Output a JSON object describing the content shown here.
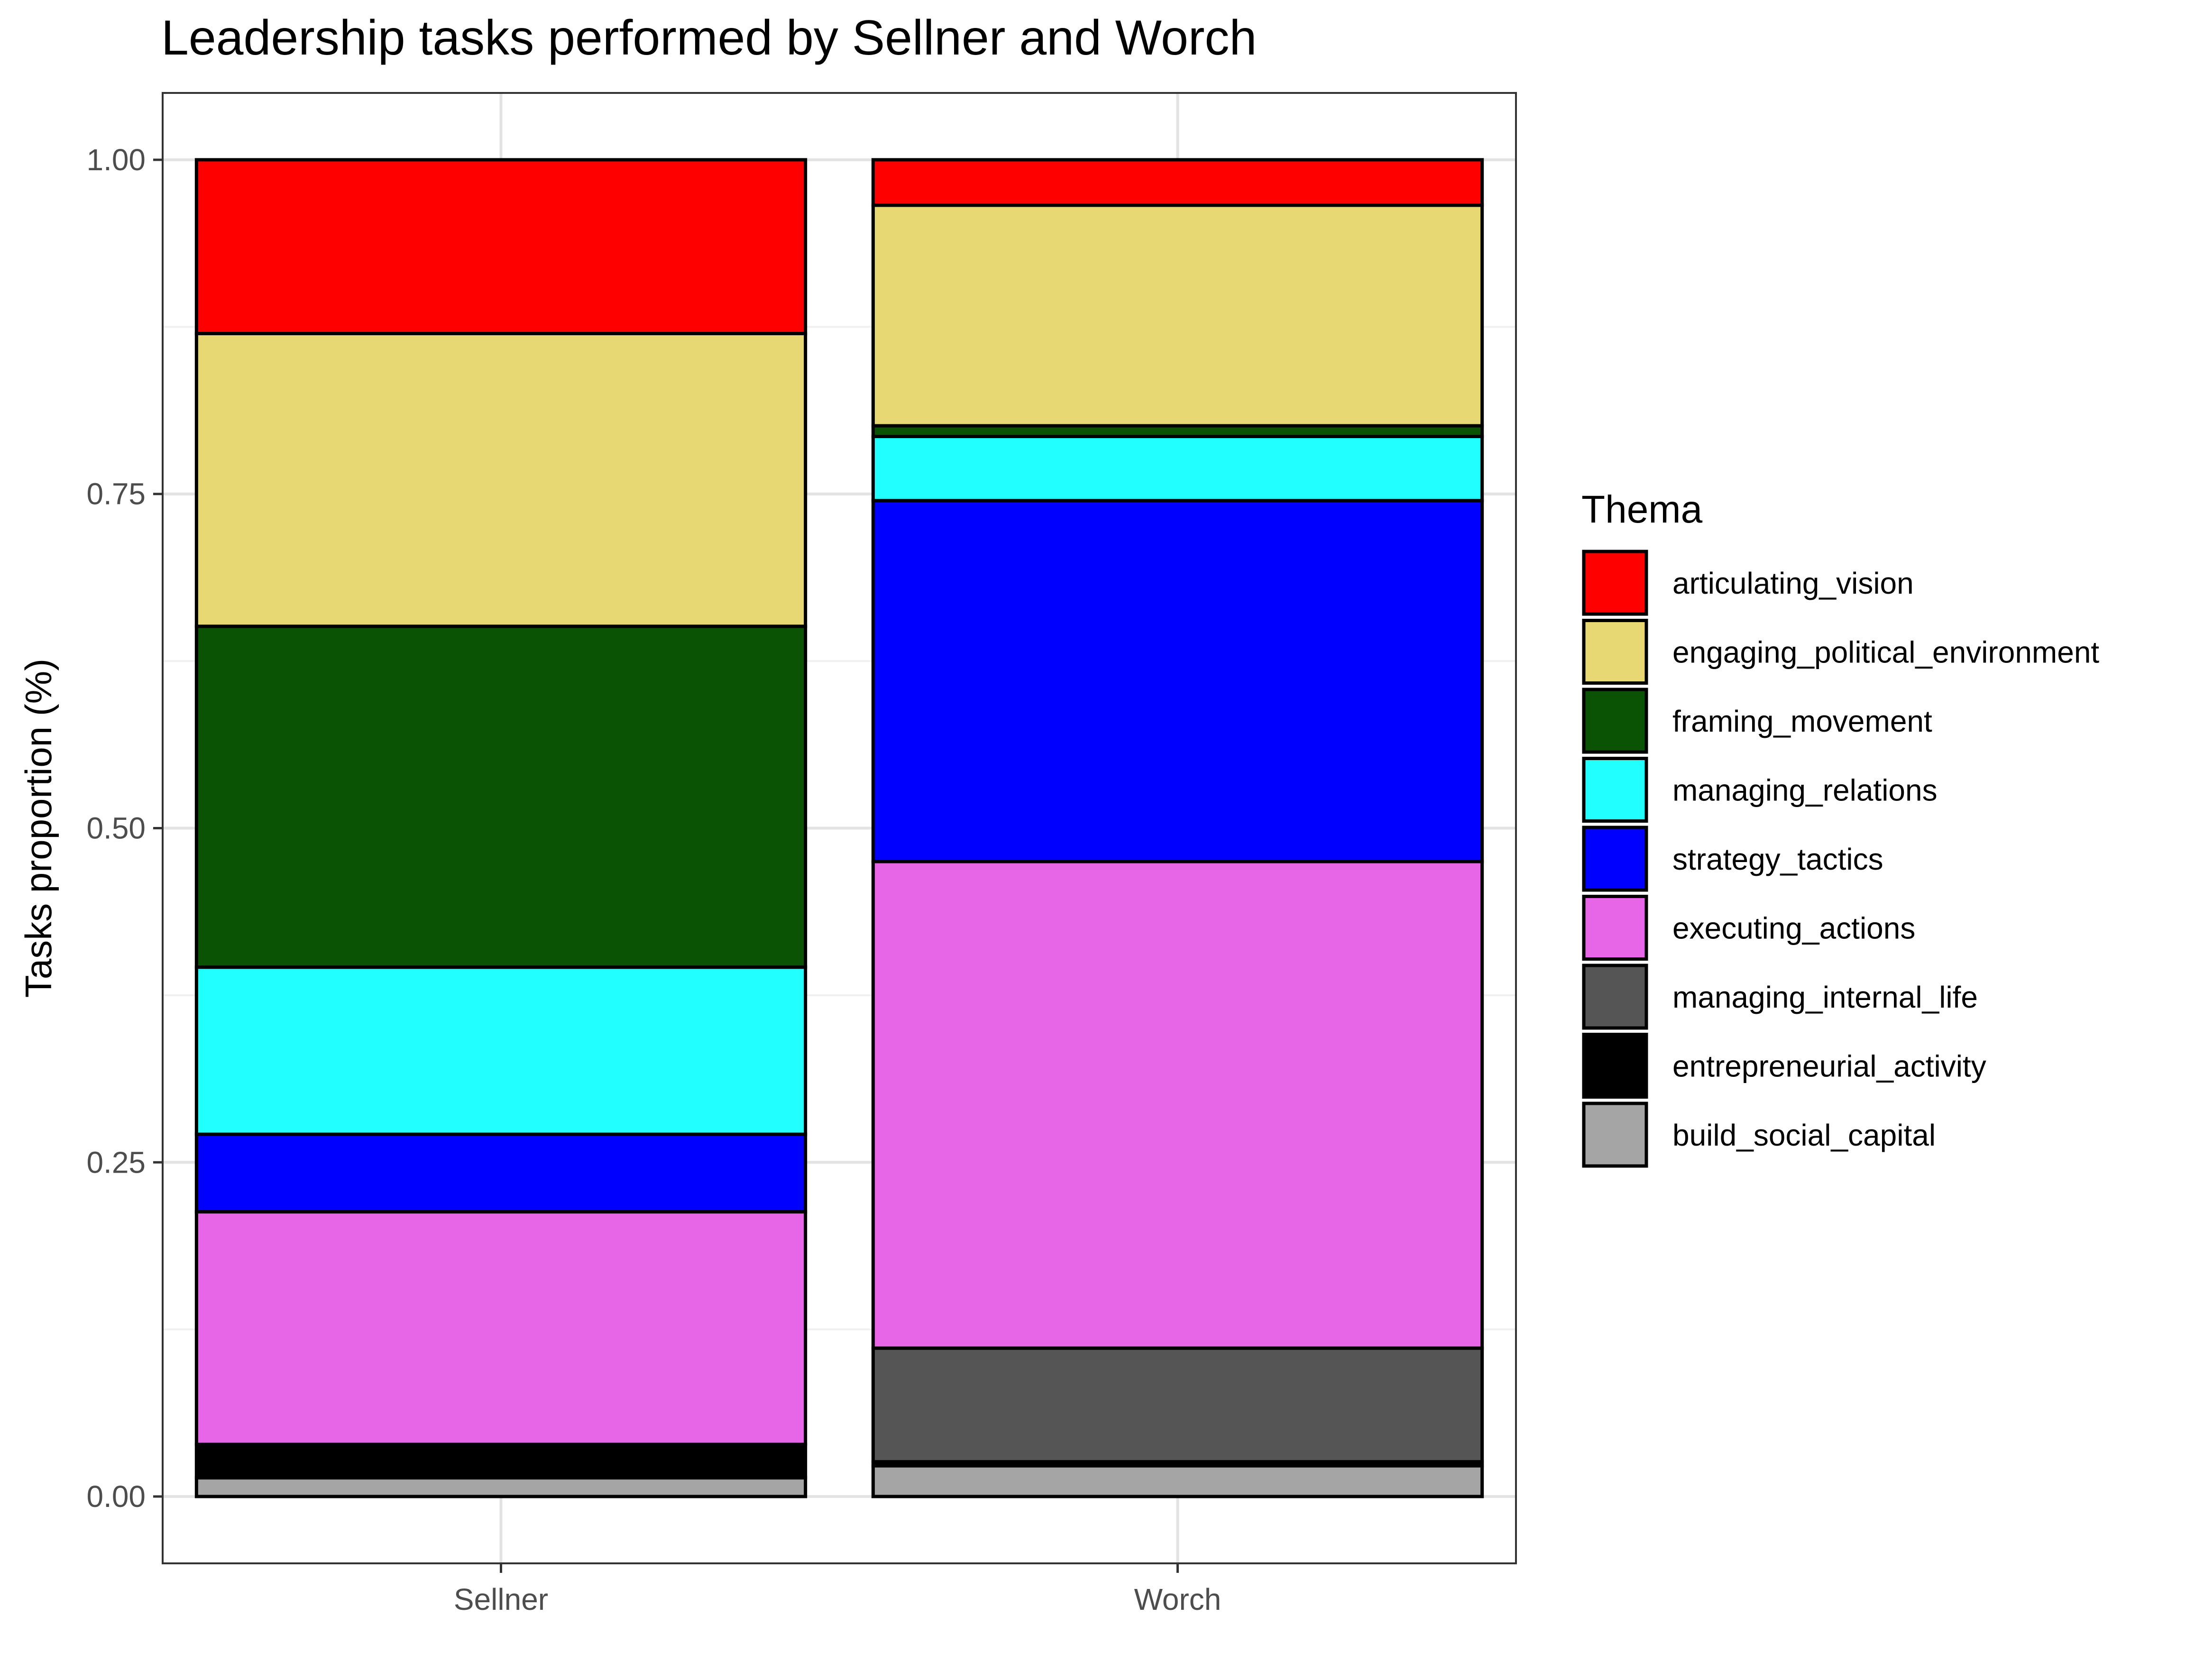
{
  "chart_data": {
    "type": "bar",
    "stacked": true,
    "title": "Leadership tasks performed by Sellner and Worch",
    "xlabel": "",
    "ylabel": "Tasks proportion (%)",
    "ylim": [
      -0.05,
      1.05
    ],
    "yticks": [
      "0.00",
      "0.25",
      "0.50",
      "0.75",
      "1.00"
    ],
    "ytick_values": [
      0,
      0.25,
      0.5,
      0.75,
      1.0
    ],
    "categories": [
      "Sellner",
      "Worch"
    ],
    "grid": true,
    "legend": {
      "title": "Thema",
      "position": "right"
    },
    "series": [
      {
        "name": "articulating_vision",
        "color": "#ff0000",
        "values": [
          0.13,
          0.034
        ]
      },
      {
        "name": "engaging_political_environment",
        "color": "#e8d874",
        "values": [
          0.219,
          0.165
        ]
      },
      {
        "name": "framing_movement",
        "color": "#0b5304",
        "values": [
          0.255,
          0.008
        ]
      },
      {
        "name": "managing_relations",
        "color": "#22ffff",
        "values": [
          0.125,
          0.048
        ]
      },
      {
        "name": "strategy_tactics",
        "color": "#0000ff",
        "values": [
          0.058,
          0.27
        ]
      },
      {
        "name": "executing_actions",
        "color": "#e766e8",
        "values": [
          0.174,
          0.364
        ]
      },
      {
        "name": "managing_internal_life",
        "color": "#555555",
        "values": [
          0.0,
          0.085
        ]
      },
      {
        "name": "entrepreneurial_activity",
        "color": "#000000",
        "values": [
          0.025,
          0.003
        ]
      },
      {
        "name": "build_social_capital",
        "color": "#a5a5a5",
        "values": [
          0.014,
          0.023
        ]
      }
    ]
  }
}
